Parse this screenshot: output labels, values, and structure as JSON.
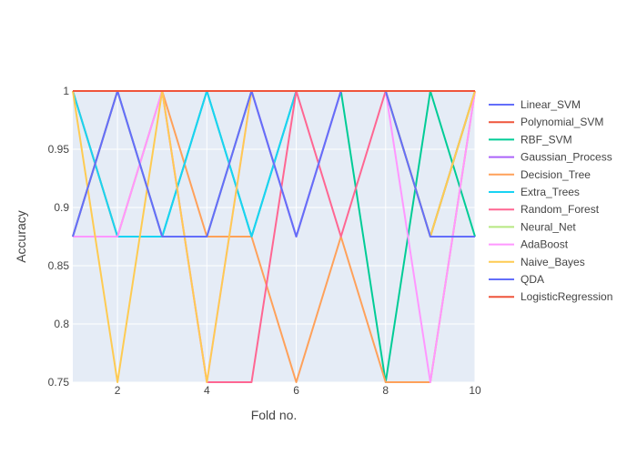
{
  "chart_data": {
    "type": "line",
    "title": "",
    "xlabel": "Fold no.",
    "ylabel": "Accuracy",
    "x": [
      1,
      2,
      3,
      4,
      5,
      6,
      7,
      8,
      9,
      10
    ],
    "xlim": [
      1,
      10
    ],
    "ylim": [
      0.75,
      1.0
    ],
    "xticks": [
      2,
      4,
      6,
      8,
      10
    ],
    "yticks": [
      0.75,
      0.8,
      0.85,
      0.9,
      0.95,
      1
    ],
    "ytick_labels": [
      "0.75",
      "0.8",
      "0.85",
      "0.9",
      "0.95",
      "1"
    ],
    "grid": true,
    "legend_position": "right",
    "plot_background": "#e5ecf6",
    "series": [
      {
        "name": "Linear_SVM",
        "color": "#636efa",
        "values": [
          0.875,
          1,
          0.875,
          0.875,
          1,
          0.875,
          1,
          1,
          0.875,
          0.875
        ]
      },
      {
        "name": "Polynomial_SVM",
        "color": "#ef553b",
        "values": [
          1,
          1,
          1,
          1,
          1,
          1,
          1,
          1,
          1,
          1
        ]
      },
      {
        "name": "RBF_SVM",
        "color": "#00cc96",
        "values": [
          1,
          0.875,
          0.875,
          1,
          0.875,
          1,
          1,
          0.75,
          1,
          0.875
        ]
      },
      {
        "name": "Gaussian_Process",
        "color": "#ab63fa",
        "values": [
          0.875,
          1,
          0.875,
          0.875,
          1,
          0.875,
          1,
          1,
          0.875,
          1
        ]
      },
      {
        "name": "Decision_Tree",
        "color": "#ffa15a",
        "values": [
          1,
          0.875,
          1,
          0.875,
          0.875,
          0.75,
          0.875,
          0.75,
          0.75,
          1
        ]
      },
      {
        "name": "Extra_Trees",
        "color": "#19d3f3",
        "values": [
          1,
          0.875,
          0.875,
          1,
          0.875,
          1,
          1,
          1,
          0.875,
          1
        ]
      },
      {
        "name": "Random_Forest",
        "color": "#ff6692",
        "values": [
          0.875,
          1,
          1,
          0.75,
          0.75,
          1,
          0.875,
          1,
          0.875,
          1
        ]
      },
      {
        "name": "Neural_Net",
        "color": "#b6e880",
        "values": [
          0.875,
          1,
          0.875,
          0.875,
          1,
          0.875,
          1,
          1,
          0.875,
          1
        ]
      },
      {
        "name": "AdaBoost",
        "color": "#ff97ff",
        "values": [
          0.875,
          0.875,
          1,
          0.75,
          1,
          0.875,
          1,
          1,
          0.75,
          1
        ]
      },
      {
        "name": "Naive_Bayes",
        "color": "#fecb52",
        "values": [
          1,
          0.75,
          1,
          0.75,
          1,
          1,
          1,
          1,
          0.875,
          1
        ]
      },
      {
        "name": "QDA",
        "color": "#636efa",
        "values": [
          0.875,
          1,
          0.875,
          0.875,
          1,
          0.875,
          1,
          1,
          0.875,
          0.875
        ]
      },
      {
        "name": "LogisticRegression",
        "color": "#ef553b",
        "values": [
          1,
          1,
          1,
          1,
          1,
          1,
          1,
          1,
          1,
          1
        ]
      }
    ]
  }
}
